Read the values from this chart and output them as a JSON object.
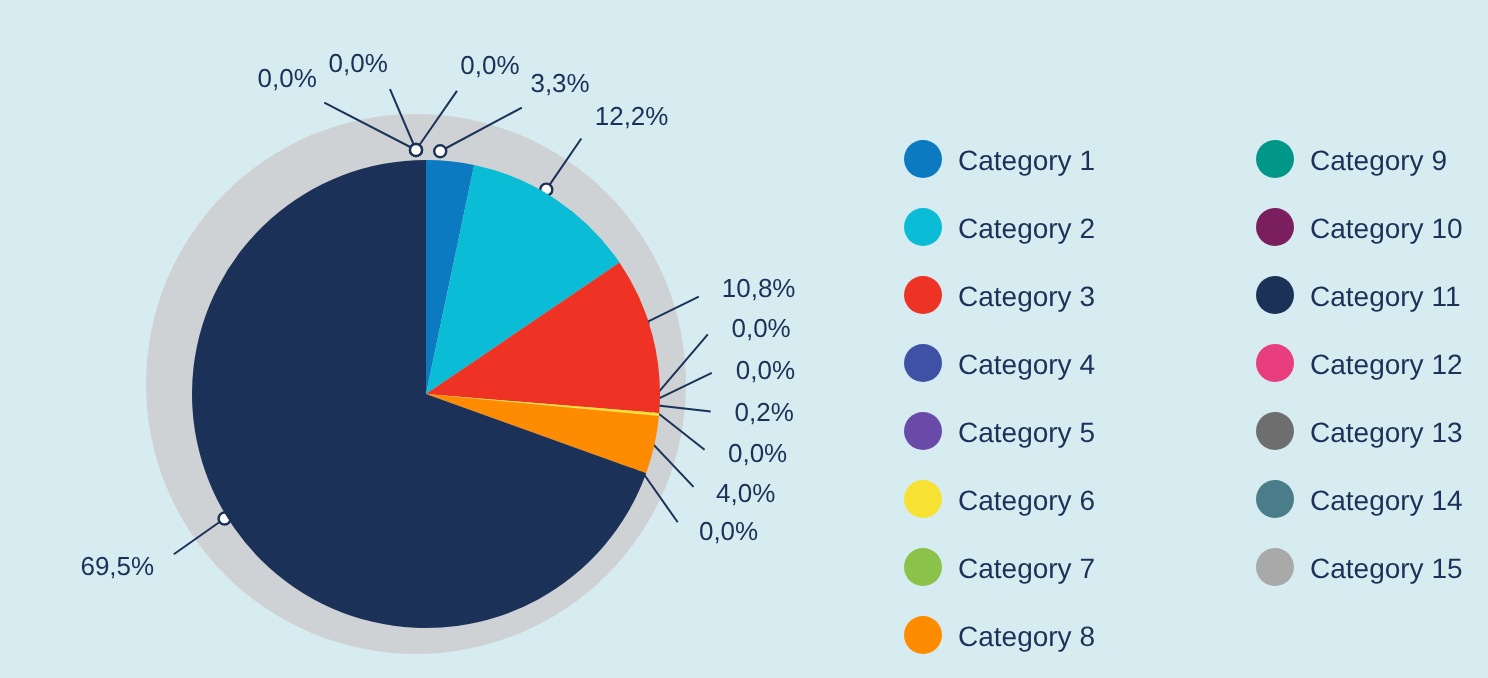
{
  "chart_data": {
    "type": "pie",
    "categories": [
      "Category 1",
      "Category 2",
      "Category 3",
      "Category 4",
      "Category 5",
      "Category 6",
      "Category 7",
      "Category 8",
      "Category 9",
      "Category 10",
      "Category 11",
      "Category 12",
      "Category 13",
      "Category 14",
      "Category 15"
    ],
    "values": [
      3.3,
      12.2,
      10.8,
      0.0,
      0.0,
      0.2,
      0.0,
      4.0,
      0.0,
      0.0,
      69.5,
      0.0,
      0.0,
      0.0,
      0.0
    ],
    "value_labels": [
      "3,3%",
      "12,2%",
      "10,8%",
      "0,0%",
      "0,0%",
      "0,2%",
      "0,0%",
      "4,0%",
      "0,0%",
      null,
      "69,5%",
      "0,0%",
      "0,0%",
      "0,0%",
      null
    ],
    "colors": [
      "#0b7ac0",
      "#0bbcd6",
      "#ee3224",
      "#3f51a5",
      "#6a4aa8",
      "#f7e233",
      "#8bc34a",
      "#ff8c00",
      "#009688",
      "#7b1e5e",
      "#1b3158",
      "#e83e7e",
      "#6e6e6e",
      "#4a7c89",
      "#a9a9a9"
    ],
    "legend": "right"
  }
}
